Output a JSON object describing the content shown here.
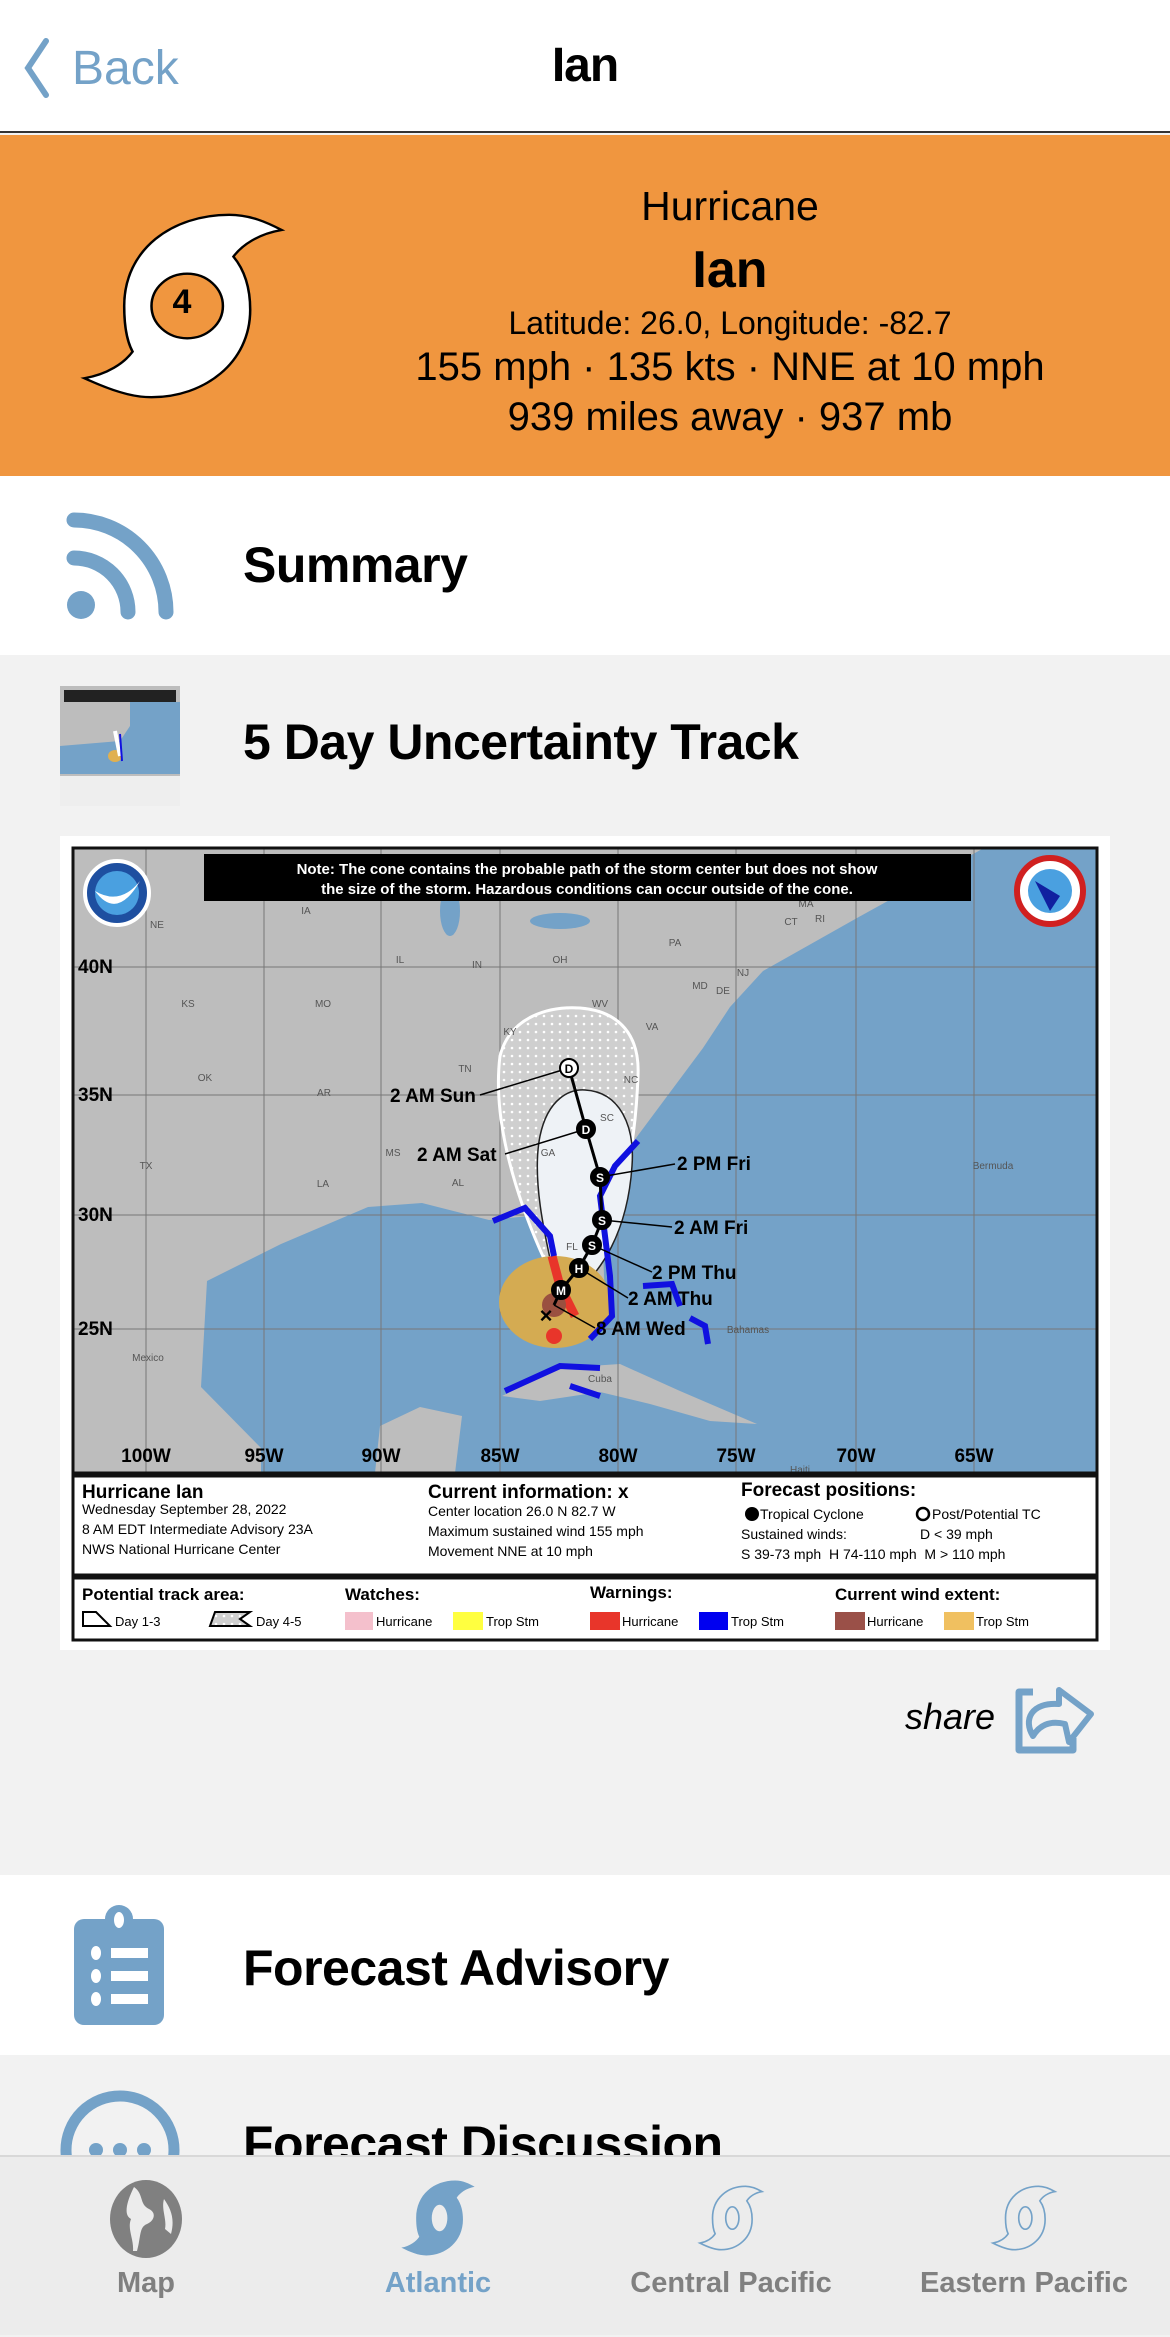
{
  "nav": {
    "back_label": "Back",
    "title": "Ian"
  },
  "storm": {
    "type": "Hurricane",
    "name": "Ian",
    "category": "4",
    "position": "Latitude: 26.0, Longitude: -82.7",
    "wind": "155 mph · 135 kts · NNE at 10 mph",
    "distance_pressure": "939 miles away · 937 mb",
    "banner_color": "#f0963f"
  },
  "accent_color": "#74a2c8",
  "sections": [
    {
      "title": "Summary",
      "icon": "rss-icon"
    },
    {
      "title": "5 Day Uncertainty Track",
      "icon": "track-thumbnail"
    },
    {
      "title": "Forecast Advisory",
      "icon": "clipboard-list-icon"
    },
    {
      "title": "Forecast Discussion",
      "icon": "chat-bubble-icon"
    }
  ],
  "share_label": "share",
  "map": {
    "note_line1": "Note: The cone contains the probable path of the storm center but does not show",
    "note_line2": "the size of the storm. Hazardous conditions can occur outside of the cone.",
    "lat_labels": [
      "40N",
      "35N",
      "30N",
      "25N"
    ],
    "lon_labels": [
      "100W",
      "95W",
      "90W",
      "85W",
      "80W",
      "75W",
      "70W",
      "65W"
    ],
    "states": [
      "NE",
      "IA",
      "IL",
      "IN",
      "OH",
      "PA",
      "KS",
      "MO",
      "KY",
      "WV",
      "VA",
      "TN",
      "NC",
      "OK",
      "AR",
      "SC",
      "MS",
      "AL",
      "GA",
      "TX",
      "LA",
      "FL",
      "MA",
      "CT",
      "RI",
      "NJ",
      "MD",
      "DE"
    ],
    "places": [
      "Mexico",
      "Bermuda",
      "Bahamas",
      "Cuba",
      "Haiti"
    ],
    "track_labels": [
      "2 AM Sun",
      "2 AM Sat",
      "2 PM Fri",
      "2 AM Fri",
      "2 PM Thu",
      "2 AM Thu",
      "8 AM Wed"
    ],
    "track_points": [
      "D",
      "D",
      "S",
      "S",
      "S",
      "H",
      "M"
    ],
    "info": {
      "title": "Hurricane Ian",
      "date": "Wednesday September 28, 2022",
      "advisory": "8 AM EDT Intermediate Advisory 23A",
      "center": "NWS National Hurricane Center",
      "current_title": "Current information: x",
      "current_location": "Center location 26.0 N 82.7 W",
      "current_wind": "Maximum sustained wind 155 mph",
      "current_movement": "Movement NNE at 10 mph",
      "forecast_title": "Forecast positions:",
      "tropical_cyclone": "Tropical Cyclone",
      "post_tc": "Post/Potential TC",
      "sustained": "Sustained winds:",
      "d_def": "D < 39 mph",
      "shm_def": "S 39-73 mph  H 74-110 mph  M > 110 mph"
    },
    "legend": {
      "track_title": "Potential track area:",
      "day13": "Day 1-3",
      "day45": "Day 4-5",
      "watches_title": "Watches:",
      "watch_hurricane": "Hurricane",
      "watch_ts": "Trop Stm",
      "warnings_title": "Warnings:",
      "warn_hurricane": "Hurricane",
      "warn_ts": "Trop Stm",
      "wind_title": "Current wind extent:",
      "wind_hurricane": "Hurricane",
      "wind_ts": "Trop Stm"
    }
  },
  "tabs": [
    {
      "label": "Map",
      "icon": "globe-icon",
      "active": false
    },
    {
      "label": "Atlantic",
      "icon": "hurricane-filled-icon",
      "active": true
    },
    {
      "label": "Central Pacific",
      "icon": "hurricane-outline-icon",
      "active": false
    },
    {
      "label": "Eastern Pacific",
      "icon": "hurricane-outline-icon",
      "active": false
    }
  ]
}
